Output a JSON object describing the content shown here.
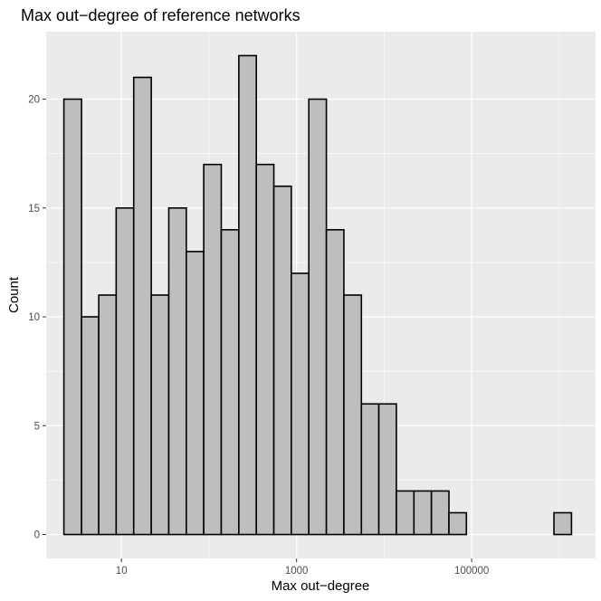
{
  "chart_data": {
    "type": "bar",
    "title": "Max out−degree of reference networks",
    "xlabel": "Max out−degree",
    "ylabel": "Count",
    "x_scale": "log10",
    "xlim": [
      1.38,
      2600000.0
    ],
    "ylim": [
      -1.1,
      23.1
    ],
    "x_ticks": [
      {
        "value": 10,
        "label": "10"
      },
      {
        "value": 1000,
        "label": "1000"
      },
      {
        "value": 100000,
        "label": "100000"
      }
    ],
    "y_ticks": [
      {
        "value": 0,
        "label": "0"
      },
      {
        "value": 5,
        "label": "5"
      },
      {
        "value": 10,
        "label": "10"
      },
      {
        "value": 15,
        "label": "15"
      },
      {
        "value": 20,
        "label": "20"
      }
    ],
    "bins": [
      {
        "x_min": 2.2,
        "x_max": 3.5,
        "count": 20
      },
      {
        "x_min": 3.5,
        "x_max": 5.5,
        "count": 10
      },
      {
        "x_min": 5.5,
        "x_max": 8.7,
        "count": 11
      },
      {
        "x_min": 8.7,
        "x_max": 13.8,
        "count": 15
      },
      {
        "x_min": 13.8,
        "x_max": 21.9,
        "count": 21
      },
      {
        "x_min": 21.9,
        "x_max": 34.7,
        "count": 11
      },
      {
        "x_min": 34.7,
        "x_max": 55,
        "count": 15
      },
      {
        "x_min": 55,
        "x_max": 87,
        "count": 13
      },
      {
        "x_min": 87,
        "x_max": 138,
        "count": 17
      },
      {
        "x_min": 138,
        "x_max": 219,
        "count": 14
      },
      {
        "x_min": 219,
        "x_max": 347,
        "count": 22
      },
      {
        "x_min": 347,
        "x_max": 550,
        "count": 17
      },
      {
        "x_min": 550,
        "x_max": 870,
        "count": 16
      },
      {
        "x_min": 870,
        "x_max": 1380,
        "count": 12
      },
      {
        "x_min": 1380,
        "x_max": 2190,
        "count": 20
      },
      {
        "x_min": 2190,
        "x_max": 3470,
        "count": 14
      },
      {
        "x_min": 3470,
        "x_max": 5500,
        "count": 11
      },
      {
        "x_min": 5500,
        "x_max": 8700,
        "count": 6
      },
      {
        "x_min": 8700,
        "x_max": 13800,
        "count": 6
      },
      {
        "x_min": 13800,
        "x_max": 21900,
        "count": 2
      },
      {
        "x_min": 21900,
        "x_max": 34700,
        "count": 2
      },
      {
        "x_min": 34700,
        "x_max": 55000,
        "count": 2
      },
      {
        "x_min": 55000,
        "x_max": 87000,
        "count": 1
      },
      {
        "x_min": 87000,
        "x_max": 138000,
        "count": 0
      },
      {
        "x_min": 138000,
        "x_max": 219000,
        "count": 0
      },
      {
        "x_min": 219000,
        "x_max": 347000,
        "count": 0
      },
      {
        "x_min": 347000,
        "x_max": 550000,
        "count": 0
      },
      {
        "x_min": 550000,
        "x_max": 870000,
        "count": 0
      },
      {
        "x_min": 870000,
        "x_max": 1380000,
        "count": 1
      }
    ],
    "bar_fill": "#bebebe",
    "bar_stroke": "#000000",
    "panel_background": "#ebebeb",
    "grid_color": "#ffffff",
    "grid": true,
    "legend": "none"
  }
}
